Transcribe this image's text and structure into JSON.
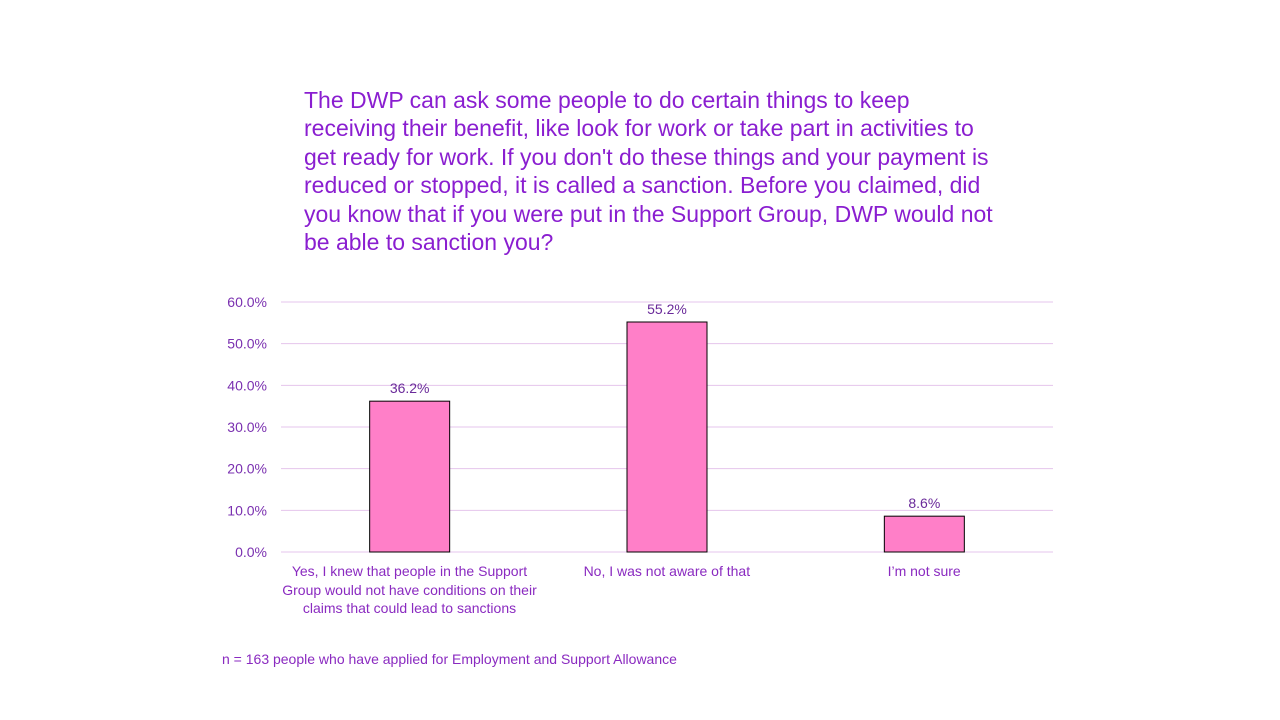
{
  "chart_data": {
    "type": "bar",
    "title": "The DWP can ask some people to do certain things to keep receiving their benefit, like look for work or take part in activities to get ready for work. If you don't do these things and your payment is reduced or stopped, it is called a sanction. Before you claimed, did you know that if you were put in the Support Group, DWP would not be able to sanction you?",
    "categories": [
      "Yes, I knew that people in the Support Group would not have conditions on their claims that could lead to sanctions",
      "No, I was not aware of that",
      "I’m not sure"
    ],
    "values": [
      36.2,
      55.2,
      8.6
    ],
    "data_labels": [
      "36.2%",
      "55.2%",
      "8.6%"
    ],
    "ylim": [
      0,
      60
    ],
    "yticks": [
      "0.0%",
      "10.0%",
      "20.0%",
      "30.0%",
      "40.0%",
      "50.0%",
      "60.0%"
    ],
    "xlabel": "",
    "ylabel": "",
    "grid": true,
    "colors": {
      "bar": "#FF7FC8",
      "bar_border": "#000000",
      "grid": "#E4C4EC",
      "text": "#8A1ED0"
    },
    "footnote": "n = 163 people who have applied for Employment and Support Allowance"
  }
}
